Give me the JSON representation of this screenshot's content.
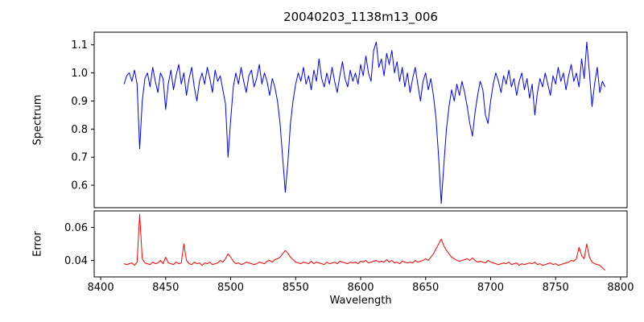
{
  "chart_data": {
    "type": "line",
    "title": "20040203_1138m13_006",
    "xlabel": "Wavelength",
    "grid": false,
    "legend": "none",
    "xlim": [
      8395,
      8805
    ],
    "xticks": [
      "8400",
      "8450",
      "8500",
      "8550",
      "8600",
      "8650",
      "8700",
      "8750",
      "8800"
    ],
    "x": [
      8418,
      8420,
      8422,
      8424,
      8426,
      8428,
      8430,
      8432,
      8434,
      8436,
      8438,
      8440,
      8442,
      8444,
      8446,
      8448,
      8450,
      8452,
      8454,
      8456,
      8458,
      8460,
      8462,
      8464,
      8466,
      8468,
      8470,
      8472,
      8474,
      8476,
      8478,
      8480,
      8482,
      8484,
      8486,
      8488,
      8490,
      8492,
      8494,
      8496,
      8498,
      8500,
      8502,
      8504,
      8506,
      8508,
      8510,
      8512,
      8514,
      8516,
      8518,
      8520,
      8522,
      8524,
      8526,
      8528,
      8530,
      8532,
      8534,
      8536,
      8538,
      8540,
      8542,
      8544,
      8546,
      8548,
      8550,
      8552,
      8554,
      8556,
      8558,
      8560,
      8562,
      8564,
      8566,
      8568,
      8570,
      8572,
      8574,
      8576,
      8578,
      8580,
      8582,
      8584,
      8586,
      8588,
      8590,
      8592,
      8594,
      8596,
      8598,
      8600,
      8602,
      8604,
      8606,
      8608,
      8610,
      8612,
      8614,
      8616,
      8618,
      8620,
      8622,
      8624,
      8626,
      8628,
      8630,
      8632,
      8634,
      8636,
      8638,
      8640,
      8642,
      8644,
      8646,
      8648,
      8650,
      8652,
      8654,
      8656,
      8658,
      8660,
      8662,
      8664,
      8666,
      8668,
      8670,
      8672,
      8674,
      8676,
      8678,
      8680,
      8682,
      8684,
      8686,
      8688,
      8690,
      8692,
      8694,
      8696,
      8698,
      8700,
      8702,
      8704,
      8706,
      8708,
      8710,
      8712,
      8714,
      8716,
      8718,
      8720,
      8722,
      8724,
      8726,
      8728,
      8730,
      8732,
      8734,
      8736,
      8738,
      8740,
      8742,
      8744,
      8746,
      8748,
      8750,
      8752,
      8754,
      8756,
      8758,
      8760,
      8762,
      8764,
      8766,
      8768,
      8770,
      8772,
      8774,
      8776,
      8778,
      8780,
      8782,
      8784,
      8786,
      8788
    ],
    "panels": [
      {
        "name": "spectrum",
        "ylabel": "Spectrum",
        "color": "#0000ff",
        "ylim": [
          0.52,
          1.145
        ],
        "yticks": [
          "0.6",
          "0.7",
          "0.8",
          "0.9",
          "1.0",
          "1.1"
        ],
        "values": [
          0.96,
          0.99,
          1.0,
          0.97,
          1.01,
          0.96,
          0.73,
          0.9,
          0.98,
          1.0,
          0.95,
          1.02,
          0.97,
          0.93,
          1.0,
          0.98,
          0.87,
          0.96,
          1.01,
          0.94,
          0.99,
          1.03,
          0.96,
          1.0,
          0.92,
          0.98,
          1.02,
          0.95,
          0.9,
          0.97,
          1.0,
          0.96,
          1.02,
          0.98,
          0.93,
          1.01,
          0.97,
          0.99,
          0.94,
          0.89,
          0.7,
          0.83,
          0.95,
          1.0,
          0.96,
          1.02,
          0.97,
          0.93,
          0.99,
          1.01,
          0.95,
          0.98,
          1.03,
          0.96,
          1.0,
          0.97,
          0.92,
          0.98,
          0.95,
          0.9,
          0.82,
          0.7,
          0.575,
          0.68,
          0.82,
          0.9,
          0.96,
          1.0,
          0.97,
          1.02,
          0.96,
          0.99,
          0.94,
          1.01,
          0.97,
          1.05,
          0.98,
          0.95,
          1.0,
          0.96,
          1.02,
          0.97,
          0.93,
          0.99,
          1.04,
          0.98,
          0.95,
          1.01,
          0.97,
          1.0,
          0.96,
          1.03,
          0.99,
          1.06,
          1.0,
          0.97,
          1.08,
          1.11,
          1.02,
          1.05,
          0.99,
          1.07,
          1.03,
          1.08,
          1.0,
          1.04,
          0.97,
          1.02,
          0.95,
          1.0,
          0.93,
          0.98,
          1.02,
          0.96,
          0.9,
          0.97,
          1.0,
          0.94,
          0.98,
          0.92,
          0.84,
          0.7,
          0.535,
          0.67,
          0.8,
          0.88,
          0.94,
          0.9,
          0.96,
          0.92,
          0.97,
          0.93,
          0.88,
          0.82,
          0.775,
          0.86,
          0.92,
          0.97,
          0.94,
          0.85,
          0.82,
          0.9,
          0.96,
          1.0,
          0.97,
          0.93,
          0.99,
          0.96,
          1.01,
          0.95,
          0.98,
          0.92,
          0.97,
          1.0,
          0.94,
          0.98,
          0.91,
          0.96,
          0.85,
          0.93,
          0.98,
          0.95,
          1.0,
          0.96,
          0.92,
          0.99,
          0.96,
          1.02,
          0.97,
          1.0,
          0.94,
          0.99,
          1.03,
          0.97,
          1.0,
          0.95,
          1.05,
          0.98,
          1.11,
          1.0,
          0.88,
          0.96,
          1.02,
          0.93,
          0.97,
          0.95
        ]
      },
      {
        "name": "error",
        "ylabel": "Error",
        "color": "#ff0000",
        "ylim": [
          0.03,
          0.07
        ],
        "yticks": [
          "0.04",
          "0.06"
        ],
        "values": [
          0.038,
          0.0375,
          0.038,
          0.0385,
          0.037,
          0.039,
          0.068,
          0.041,
          0.0385,
          0.038,
          0.0375,
          0.039,
          0.038,
          0.0385,
          0.04,
          0.038,
          0.042,
          0.0385,
          0.038,
          0.0375,
          0.039,
          0.038,
          0.0385,
          0.05,
          0.04,
          0.038,
          0.0375,
          0.039,
          0.038,
          0.0385,
          0.037,
          0.0385,
          0.038,
          0.039,
          0.0375,
          0.038,
          0.0385,
          0.04,
          0.039,
          0.041,
          0.044,
          0.042,
          0.0395,
          0.038,
          0.0385,
          0.0375,
          0.038,
          0.039,
          0.0385,
          0.038,
          0.0375,
          0.038,
          0.039,
          0.0385,
          0.038,
          0.0395,
          0.04,
          0.039,
          0.0405,
          0.041,
          0.042,
          0.044,
          0.046,
          0.0445,
          0.042,
          0.0405,
          0.039,
          0.0385,
          0.038,
          0.039,
          0.0385,
          0.038,
          0.0395,
          0.038,
          0.039,
          0.0385,
          0.038,
          0.0375,
          0.039,
          0.038,
          0.0385,
          0.039,
          0.038,
          0.0395,
          0.039,
          0.0385,
          0.038,
          0.039,
          0.0385,
          0.039,
          0.038,
          0.0395,
          0.039,
          0.04,
          0.0385,
          0.039,
          0.0395,
          0.04,
          0.039,
          0.0395,
          0.039,
          0.0405,
          0.039,
          0.04,
          0.0385,
          0.039,
          0.038,
          0.0395,
          0.039,
          0.0385,
          0.039,
          0.0385,
          0.04,
          0.039,
          0.0395,
          0.04,
          0.041,
          0.04,
          0.042,
          0.044,
          0.047,
          0.05,
          0.053,
          0.049,
          0.046,
          0.044,
          0.042,
          0.041,
          0.04,
          0.0395,
          0.04,
          0.0405,
          0.041,
          0.04,
          0.0415,
          0.04,
          0.039,
          0.0395,
          0.039,
          0.0385,
          0.04,
          0.039,
          0.0385,
          0.038,
          0.0375,
          0.038,
          0.0385,
          0.038,
          0.039,
          0.0375,
          0.038,
          0.0385,
          0.037,
          0.038,
          0.0375,
          0.038,
          0.0385,
          0.038,
          0.039,
          0.0375,
          0.038,
          0.037,
          0.0375,
          0.038,
          0.0385,
          0.0375,
          0.038,
          0.037,
          0.0375,
          0.038,
          0.0385,
          0.039,
          0.04,
          0.0395,
          0.041,
          0.048,
          0.043,
          0.041,
          0.05,
          0.042,
          0.039,
          0.038,
          0.0375,
          0.037,
          0.0355,
          0.034
        ]
      }
    ]
  }
}
